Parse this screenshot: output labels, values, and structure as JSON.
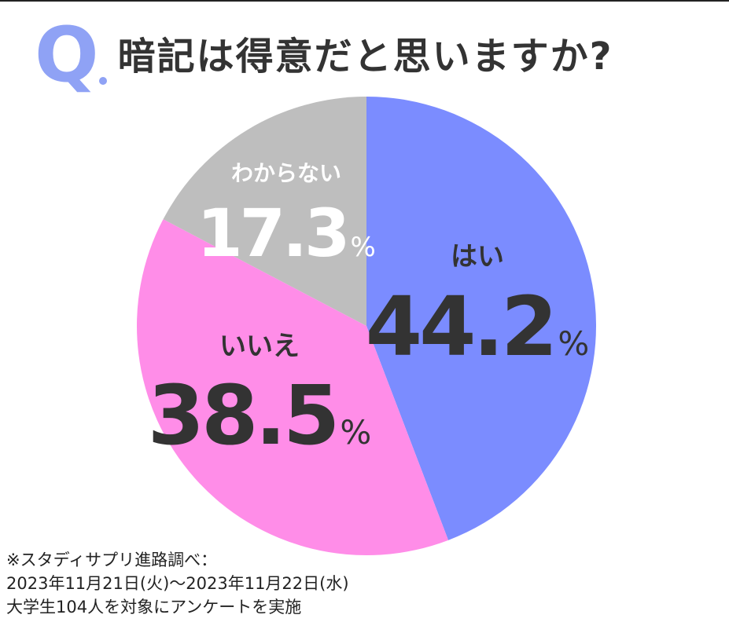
{
  "header": {
    "q_mark": "Q",
    "question": "暗記は得意だと思いますか?"
  },
  "chart_data": {
    "type": "pie",
    "title": "暗記は得意だと思いますか?",
    "slices": [
      {
        "label": "はい",
        "value": 44.2,
        "value_text": "44.2",
        "unit": "%",
        "color": "#7b8cff"
      },
      {
        "label": "いいえ",
        "value": 38.5,
        "value_text": "38.5",
        "unit": "%",
        "color": "#ff8de8"
      },
      {
        "label": "わからない",
        "value": 17.3,
        "value_text": "17.3",
        "unit": "%",
        "color": "#bebebe"
      }
    ]
  },
  "footnote": {
    "line1": "※スタディサプリ進路調べ：",
    "line2": "2023年11月21日(火)～2023年11月22日(水)",
    "line3": "大学生104人を対象にアンケートを実施"
  }
}
